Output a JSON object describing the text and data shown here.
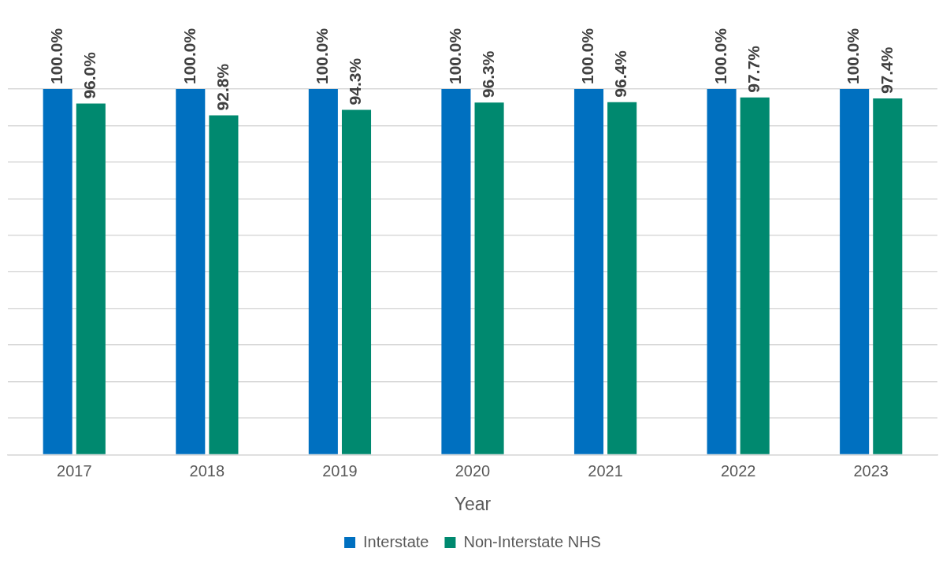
{
  "chart_data": {
    "type": "bar",
    "xlabel": "Year",
    "categories": [
      "2017",
      "2018",
      "2019",
      "2020",
      "2021",
      "2022",
      "2023"
    ],
    "series": [
      {
        "name": "Interstate",
        "color": "#0070c0",
        "values": [
          100.0,
          100.0,
          100.0,
          100.0,
          100.0,
          100.0,
          100.0
        ],
        "value_labels": [
          "100.0%",
          "100.0%",
          "100.0%",
          "100.0%",
          "100.0%",
          "100.0%",
          "100.0%"
        ]
      },
      {
        "name": "Non-Interstate NHS",
        "color": "#00896f",
        "values": [
          96.0,
          92.8,
          94.3,
          96.3,
          96.4,
          97.7,
          97.4
        ],
        "value_labels": [
          "96.0%",
          "92.8%",
          "94.3%",
          "96.3%",
          "96.4%",
          "97.7%",
          "97.4%"
        ]
      }
    ],
    "ylim": [
      0,
      100
    ],
    "yticks": [
      {
        "value": 0,
        "label": null
      },
      {
        "value": 10,
        "label": null
      },
      {
        "value": 20,
        "label": null
      },
      {
        "value": 30,
        "label": null
      },
      {
        "value": 40,
        "label": null
      },
      {
        "value": 50,
        "label": null
      },
      {
        "value": 60,
        "label": null
      },
      {
        "value": 70,
        "label": null
      },
      {
        "value": 80,
        "label": null
      },
      {
        "value": 90,
        "label": null
      },
      {
        "value": 100,
        "label": null
      }
    ],
    "grid": "y",
    "legend": "bottom",
    "tick_labels": "x"
  }
}
